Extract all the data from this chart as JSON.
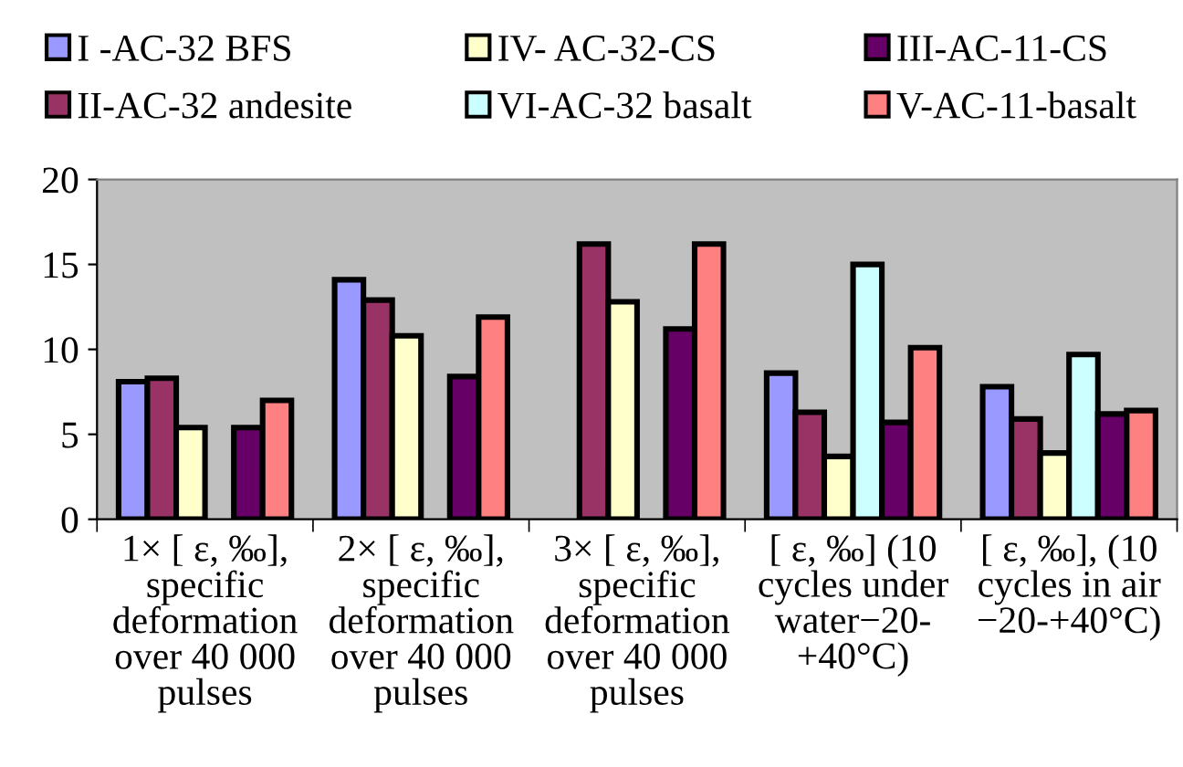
{
  "chart_data": {
    "type": "bar",
    "categories": [
      "1× [ ε, ‰],\nspecific\ndeformation\nover 40 000\npulses",
      "2× [ ε, ‰],\nspecific\ndeformation\nover 40 000\npulses",
      "3× [ ε, ‰],\nspecific\ndeformation\nover 40 000\npulses",
      "[ ε, ‰] (10\ncycles under\nwater−20-\n+40°C)",
      "[ ε, ‰], (10\ncycles in air\n−20-+40°C)"
    ],
    "series": [
      {
        "name": "I -AC-32 BFS",
        "color": "#9999ff",
        "values": [
          8.1,
          14.1,
          null,
          8.6,
          7.8
        ]
      },
      {
        "name": "II-AC-32 andesite",
        "color": "#993366",
        "values": [
          8.3,
          12.9,
          16.2,
          6.3,
          5.9
        ]
      },
      {
        "name": "IV- AC-32-CS",
        "color": "#ffffcc",
        "values": [
          5.4,
          10.8,
          12.8,
          3.7,
          3.9
        ]
      },
      {
        "name": "VI-AC-32 basalt",
        "color": "#ccffff",
        "values": [
          null,
          null,
          null,
          15.0,
          9.7
        ]
      },
      {
        "name": "III-AC-11-CS",
        "color": "#660066",
        "values": [
          5.4,
          8.4,
          11.2,
          5.7,
          6.2
        ]
      },
      {
        "name": "V-AC-11-basalt",
        "color": "#ff8080",
        "values": [
          7.0,
          11.9,
          16.2,
          10.1,
          6.4
        ]
      }
    ],
    "ylim": [
      0,
      20
    ],
    "yticks": [
      0,
      5,
      10,
      15,
      20
    ],
    "grid": false,
    "legend": "top"
  }
}
